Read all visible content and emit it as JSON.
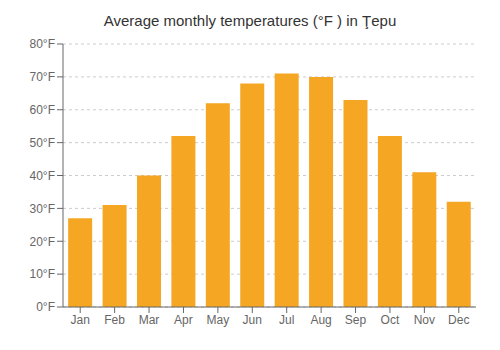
{
  "chart_data": {
    "type": "bar",
    "title": "Average monthly temperatures (°F ) in Ţepu",
    "categories": [
      "Jan",
      "Feb",
      "Mar",
      "Apr",
      "May",
      "Jun",
      "Jul",
      "Aug",
      "Sep",
      "Oct",
      "Nov",
      "Dec"
    ],
    "values": [
      27,
      31,
      40,
      52,
      62,
      68,
      71,
      70,
      63,
      52,
      41,
      32
    ],
    "color": "#F5A623",
    "ylim": [
      0,
      80
    ],
    "yticks": [
      {
        "value": 0,
        "label": "0°F"
      },
      {
        "value": 10,
        "label": "10°F"
      },
      {
        "value": 20,
        "label": "20°F"
      },
      {
        "value": 30,
        "label": "30°F"
      },
      {
        "value": 40,
        "label": "40°F"
      },
      {
        "value": 50,
        "label": "50°F"
      },
      {
        "value": 60,
        "label": "60°F"
      },
      {
        "value": 70,
        "label": "70°F"
      },
      {
        "value": 80,
        "label": "80°F"
      }
    ],
    "grid": true
  }
}
